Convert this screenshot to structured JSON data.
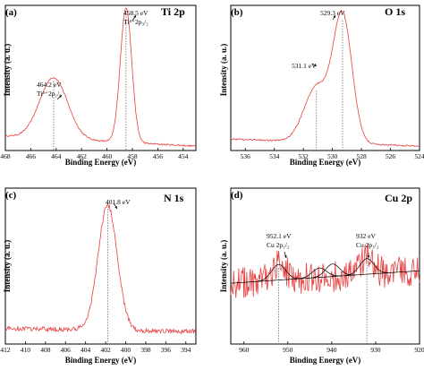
{
  "figure": {
    "background": "#ffffff"
  },
  "style": {
    "data_color": "#e84040",
    "fit_color": "#000000",
    "guide_color": "#555555"
  },
  "chart_data": [
    {
      "type": "line",
      "panel": "(a)",
      "title": "Ti 2p",
      "xlabel": "Binding Energy (eV)",
      "ylabel": "Intensity (a. u.)",
      "xlim": [
        468,
        453
      ],
      "x_reversed": true,
      "xticks": [
        468,
        466,
        464,
        462,
        460,
        458,
        456,
        454
      ],
      "peaks": [
        {
          "x": 464.2,
          "height": 0.42,
          "width": 1.1,
          "label_lines": [
            "464.2 eV",
            "Ti⁴⁺2p₁/₂"
          ]
        },
        {
          "x": 458.5,
          "height": 0.93,
          "width": 0.45,
          "label_lines": [
            "458.5 eV",
            "Ti⁴⁺2p₃/₂"
          ]
        }
      ],
      "baseline": {
        "start": 0.1,
        "end": 0.03
      },
      "noise": 0.005
    },
    {
      "type": "line",
      "panel": "(b)",
      "title": "O 1s",
      "xlabel": "Binding Energy (eV)",
      "ylabel": "Intensity (a. u.)",
      "xlim": [
        537,
        524
      ],
      "x_reversed": true,
      "xticks": [
        536,
        534,
        532,
        530,
        528,
        526,
        524
      ],
      "peaks": [
        {
          "x": 529.3,
          "height": 0.87,
          "width": 0.65,
          "label_lines": [
            "529.3 eV"
          ]
        },
        {
          "x": 531.1,
          "height": 0.38,
          "width": 0.85,
          "label_lines": [
            "531.1 eV"
          ]
        }
      ],
      "baseline": {
        "start": 0.08,
        "end": 0.03
      },
      "noise": 0.005
    },
    {
      "type": "line",
      "panel": "(c)",
      "title": "N 1s",
      "xlabel": "Binding Energy (eV)",
      "ylabel": "Intensity (a. u.)",
      "xlim": [
        412,
        393
      ],
      "x_reversed": true,
      "xticks": [
        412,
        410,
        408,
        406,
        404,
        402,
        400,
        398,
        396,
        394
      ],
      "peaks": [
        {
          "x": 401.8,
          "height": 0.8,
          "width": 0.95,
          "label_lines": [
            "401.8 eV"
          ]
        }
      ],
      "baseline": {
        "start": 0.1,
        "end": 0.08
      },
      "noise": 0.015
    },
    {
      "type": "line",
      "panel": "(d)",
      "title": "Cu 2p",
      "xlabel": "Binding Energy (eV)",
      "ylabel": "Intensity (a. u.)",
      "xlim": [
        963,
        920
      ],
      "x_reversed": true,
      "xticks": [
        960,
        950,
        940,
        930,
        920
      ],
      "peaks": [
        {
          "x": 952.1,
          "height": 0.1,
          "width": 1.6,
          "label_lines": [
            "952.1 eV",
            "Cu 2p₁/₂"
          ]
        },
        {
          "x": 932,
          "height": 0.1,
          "width": 1.6,
          "label_lines": [
            "932 eV",
            "Cu 2p₃/₂"
          ]
        }
      ],
      "fit_peaks": [
        {
          "x": 952.1,
          "height": 0.1,
          "width": 1.6
        },
        {
          "x": 942.8,
          "height": 0.06,
          "width": 1.6
        },
        {
          "x": 939.8,
          "height": 0.08,
          "width": 1.6
        },
        {
          "x": 932,
          "height": 0.1,
          "width": 1.6
        }
      ],
      "baseline": {
        "start": 0.39,
        "end": 0.47
      },
      "noise": 0.1
    }
  ]
}
